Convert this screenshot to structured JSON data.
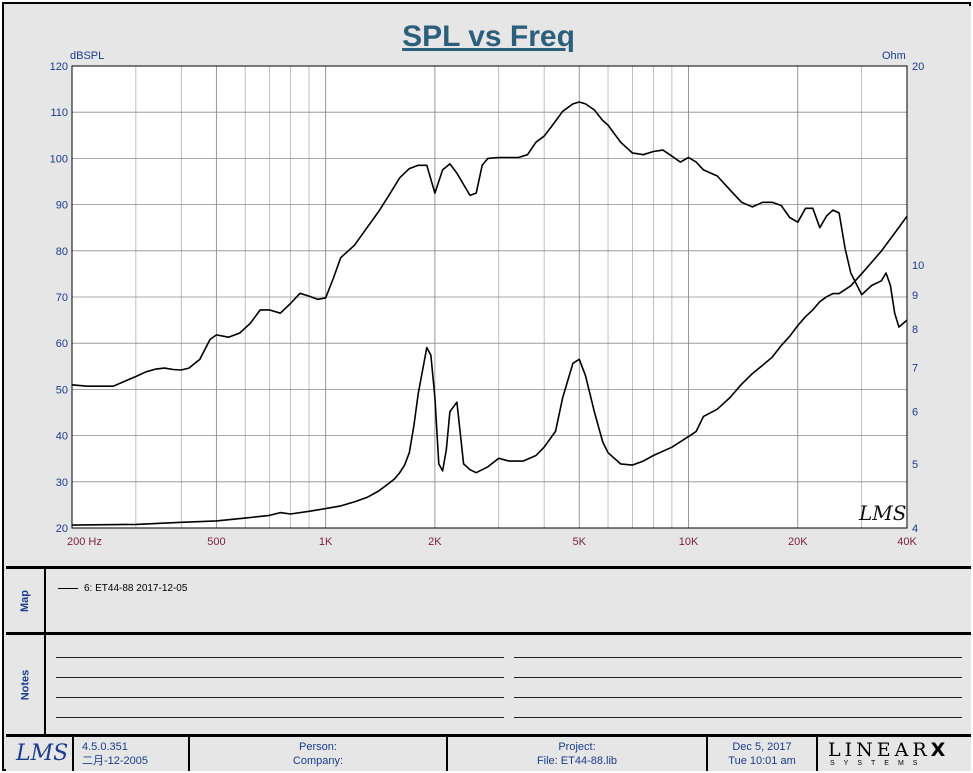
{
  "chart_data": {
    "type": "line",
    "title": "SPL vs Freq",
    "x_scale": "log",
    "xlim": [
      200,
      40000
    ],
    "left_axis": {
      "label": "dBSPL",
      "ylim": [
        20,
        120
      ],
      "ticks": [
        20,
        30,
        40,
        50,
        60,
        70,
        80,
        90,
        100,
        110,
        120
      ]
    },
    "right_axis": {
      "label": "Ohm",
      "scale": "log",
      "ylim": [
        4,
        20
      ],
      "ticks": [
        4,
        5,
        6,
        7,
        8,
        9,
        10,
        20
      ]
    },
    "x_ticks": [
      {
        "value": 200,
        "label": "200  Hz"
      },
      {
        "value": 500,
        "label": "500"
      },
      {
        "value": 1000,
        "label": "1K"
      },
      {
        "value": 2000,
        "label": "2K"
      },
      {
        "value": 5000,
        "label": "5K"
      },
      {
        "value": 10000,
        "label": "10K"
      },
      {
        "value": 20000,
        "label": "20K"
      },
      {
        "value": 40000,
        "label": "40K"
      }
    ],
    "grid": true,
    "series": [
      {
        "name": "6: ET44-88 2017-12-05",
        "axis": "left",
        "x": [
          200,
          220,
          240,
          260,
          280,
          300,
          320,
          340,
          360,
          380,
          400,
          420,
          450,
          480,
          500,
          540,
          580,
          620,
          660,
          700,
          750,
          800,
          850,
          900,
          950,
          1000,
          1050,
          1100,
          1200,
          1300,
          1400,
          1500,
          1600,
          1700,
          1800,
          1900,
          2000,
          2100,
          2200,
          2300,
          2500,
          2600,
          2700,
          2800,
          3000,
          3200,
          3400,
          3600,
          3800,
          4000,
          4200,
          4500,
          4800,
          5000,
          5200,
          5500,
          5800,
          6000,
          6500,
          7000,
          7500,
          8000,
          8500,
          9000,
          9500,
          10000,
          10500,
          11000,
          12000,
          13000,
          14000,
          15000,
          16000,
          17000,
          18000,
          19000,
          20000,
          21000,
          22000,
          23000,
          24000,
          25000,
          26000,
          27000,
          28000,
          30000,
          32000,
          34000,
          35000,
          36000,
          37000,
          38000,
          40000
        ],
        "values": [
          51,
          50.7,
          50.7,
          50.7,
          51.8,
          52.8,
          53.8,
          54.4,
          54.6,
          54.3,
          54.2,
          54.6,
          56.5,
          60.8,
          61.8,
          61.3,
          62.2,
          64.3,
          67.2,
          67.2,
          66.5,
          68.6,
          70.8,
          70.2,
          69.5,
          69.8,
          74,
          78.5,
          81.2,
          85,
          88.5,
          92.2,
          95.8,
          97.8,
          98.5,
          98.5,
          92.5,
          97.5,
          98.8,
          96.8,
          92,
          92.5,
          98.5,
          100,
          100.2,
          100.2,
          100.2,
          100.8,
          103.5,
          104.8,
          107,
          110.2,
          111.8,
          112.2,
          111.8,
          110.5,
          108.2,
          107.2,
          103.5,
          101.2,
          100.8,
          101.5,
          101.8,
          100.5,
          99.2,
          100.2,
          99.2,
          97.5,
          96.2,
          93.2,
          90.5,
          89.5,
          90.5,
          90.5,
          89.8,
          87.2,
          86.2,
          89.2,
          89.2,
          85,
          87.5,
          88.8,
          88.2,
          80.5,
          75.2,
          70.5,
          72.5,
          73.5,
          75.2,
          72.5,
          66.5,
          63.5,
          65
        ]
      },
      {
        "name": "impedance",
        "axis": "right",
        "x": [
          200,
          300,
          400,
          500,
          600,
          700,
          750,
          800,
          900,
          1000,
          1100,
          1200,
          1300,
          1400,
          1500,
          1550,
          1600,
          1650,
          1700,
          1750,
          1800,
          1900,
          1950,
          2000,
          2050,
          2100,
          2150,
          2200,
          2300,
          2400,
          2500,
          2600,
          2800,
          3000,
          3200,
          3500,
          3800,
          4000,
          4300,
          4500,
          4800,
          5000,
          5200,
          5500,
          5800,
          6000,
          6500,
          7000,
          7500,
          8000,
          9000,
          10000,
          10500,
          11000,
          12000,
          13000,
          14000,
          15000,
          16000,
          17000,
          18000,
          19000,
          20000,
          21000,
          22000,
          23000,
          24000,
          25000,
          26000,
          28000,
          30000,
          32000,
          34000,
          36000,
          38000,
          40000
        ],
        "values": [
          4.04,
          4.05,
          4.08,
          4.1,
          4.14,
          4.18,
          4.22,
          4.2,
          4.24,
          4.28,
          4.32,
          4.38,
          4.45,
          4.55,
          4.68,
          4.75,
          4.85,
          4.98,
          5.2,
          5.7,
          6.4,
          7.5,
          7.3,
          6.3,
          5.0,
          4.88,
          5.25,
          6.0,
          6.2,
          5.0,
          4.9,
          4.85,
          4.95,
          5.1,
          5.05,
          5.05,
          5.15,
          5.3,
          5.6,
          6.3,
          7.1,
          7.2,
          6.8,
          6.0,
          5.4,
          5.2,
          5.0,
          4.98,
          5.05,
          5.15,
          5.3,
          5.5,
          5.6,
          5.9,
          6.05,
          6.3,
          6.6,
          6.85,
          7.05,
          7.25,
          7.55,
          7.8,
          8.1,
          8.35,
          8.55,
          8.8,
          8.95,
          9.05,
          9.05,
          9.3,
          9.7,
          10.1,
          10.5,
          10.95,
          11.4,
          11.85
        ]
      }
    ]
  },
  "legend": {
    "entries": [
      {
        "label": "6: ET44-88 2017-12-05",
        "color": "#000000"
      }
    ]
  },
  "sections": {
    "map_label": "Map",
    "notes_label": "Notes"
  },
  "watermark": "LMS",
  "footer": {
    "logo": "LMS",
    "version": "4.5.0.351",
    "version_date": "二月-12-2005",
    "person_label": "Person:",
    "company_label": "Company:",
    "project_label": "Project:",
    "file_label": "File: ET44-88.lib",
    "date": "Dec  5, 2017",
    "time": "Tue 10:01 am",
    "brand": "LINEAR",
    "brand_x": "X",
    "brand_sub": "SYSTEMS"
  },
  "colors": {
    "axis_text": "#1a3c8c",
    "x_tick_text": "#7a1f3d",
    "title": "#2c5f7c",
    "grid": "#8c8c8c",
    "plot_bg": "#ffffff",
    "panel_bg": "#e6e6e6"
  }
}
